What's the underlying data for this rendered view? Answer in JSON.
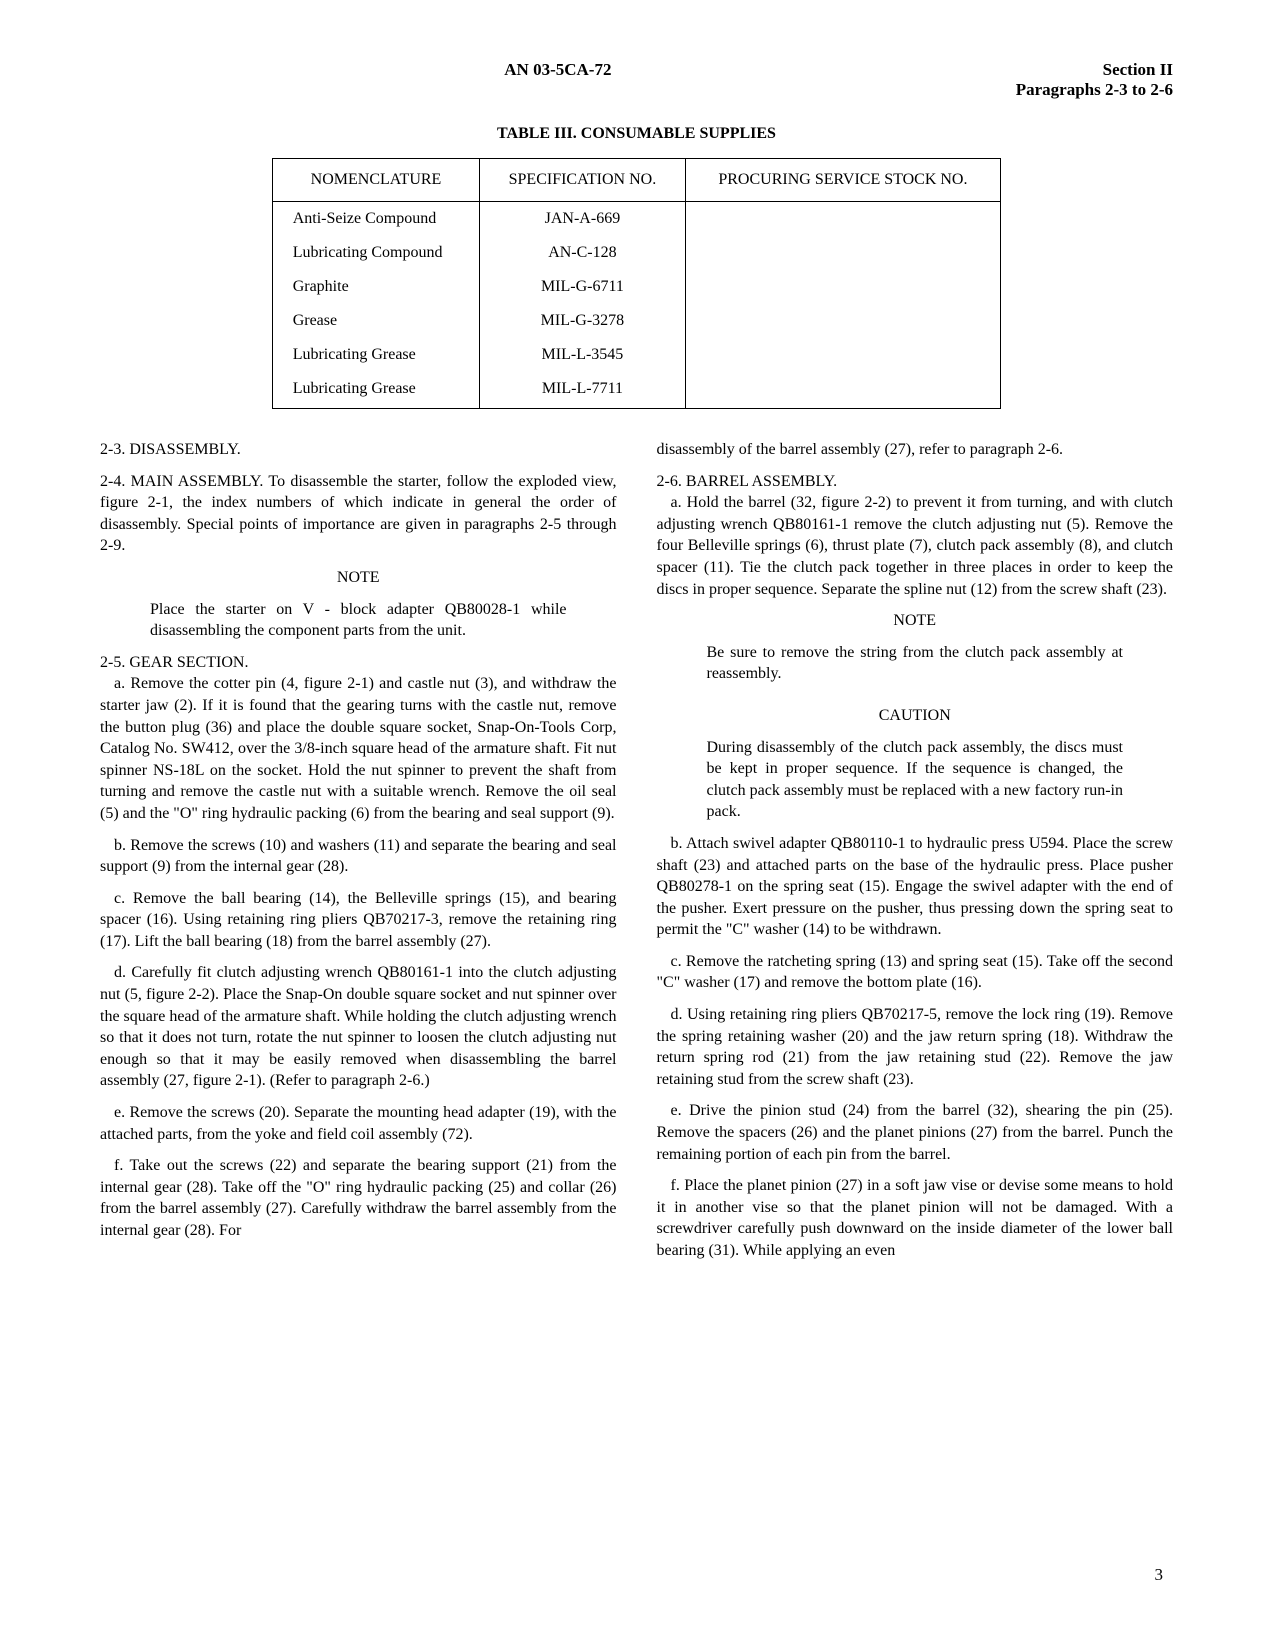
{
  "header": {
    "center": "AN 03-5CA-72",
    "right_line1": "Section II",
    "right_line2": "Paragraphs 2-3 to 2-6"
  },
  "table": {
    "title": "TABLE III.  CONSUMABLE SUPPLIES",
    "headers": [
      "NOMENCLATURE",
      "SPECIFICATION NO.",
      "PROCURING SERVICE STOCK NO."
    ],
    "rows": [
      [
        "Anti-Seize Compound",
        "JAN-A-669",
        ""
      ],
      [
        "Lubricating Compound",
        "AN-C-128",
        ""
      ],
      [
        "Graphite",
        "MIL-G-6711",
        ""
      ],
      [
        "Grease",
        "MIL-G-3278",
        ""
      ],
      [
        "Lubricating Grease",
        "MIL-L-3545",
        ""
      ],
      [
        "Lubricating Grease",
        "MIL-L-7711",
        ""
      ]
    ]
  },
  "left_col": {
    "p1": "2-3. DISASSEMBLY.",
    "p2": "2-4. MAIN ASSEMBLY. To disassemble the starter, follow the exploded view, figure 2-1, the index numbers of which indicate in general the order of disassembly. Special points of importance are given in paragraphs 2-5 through 2-9.",
    "note_title": "NOTE",
    "note": "Place the starter on V - block adapter QB80028-1 while disassembling the component parts from the unit.",
    "p3": "2-5. GEAR SECTION.",
    "p3a": "a. Remove the cotter pin (4, figure 2-1) and castle nut (3), and withdraw the starter jaw (2). If it is found that the gearing turns with the castle nut, remove the button plug (36) and place the double square socket, Snap-On-Tools Corp, Catalog No. SW412, over the 3/8-inch square head of the armature shaft. Fit nut spinner NS-18L on the socket. Hold the nut spinner to prevent the shaft from turning and remove the castle nut with a suitable wrench. Remove the oil seal (5) and the \"O\" ring hydraulic packing (6) from the bearing and seal support (9).",
    "p3b": "b. Remove the screws (10) and washers (11) and separate the bearing and seal support (9) from the internal gear (28).",
    "p3c": "c. Remove the ball bearing (14), the Belleville springs (15), and bearing spacer (16). Using retaining ring pliers QB70217-3, remove the retaining ring (17). Lift the ball bearing (18) from the barrel assembly (27).",
    "p3d": "d. Carefully fit clutch adjusting wrench QB80161-1 into the clutch adjusting nut (5, figure 2-2). Place the Snap-On double square socket and nut spinner over the square head of the armature shaft. While holding the clutch adjusting wrench so that it does not turn, rotate the nut spinner to loosen the clutch adjusting nut enough so that it may be easily removed when disassembling the barrel assembly (27, figure 2-1). (Refer to paragraph 2-6.)",
    "p3e": "e. Remove the screws (20). Separate the mounting head adapter (19), with the attached parts, from the yoke and field coil assembly (72).",
    "p3f": "f. Take out the screws (22) and separate the bearing support (21) from the internal gear (28). Take off the \"O\" ring hydraulic packing (25) and collar (26) from the barrel assembly (27). Carefully withdraw the barrel assembly from the internal gear (28). For"
  },
  "right_col": {
    "p1": "disassembly of the barrel assembly (27), refer to paragraph 2-6.",
    "p2": "2-6. BARREL ASSEMBLY.",
    "p2a": "a. Hold the barrel (32, figure 2-2) to prevent it from turning, and with clutch adjusting wrench QB80161-1 remove the clutch adjusting nut (5). Remove the four Belleville springs (6), thrust plate (7), clutch pack assembly (8), and clutch spacer (11). Tie the clutch pack together in three places in order to keep the discs in proper sequence. Separate the spline nut (12) from the screw shaft (23).",
    "note_title": "NOTE",
    "note": "Be sure to remove the string from the clutch pack assembly at reassembly.",
    "caution_title": "CAUTION",
    "caution": "During disassembly of the clutch pack assembly, the discs must be kept in proper sequence. If the sequence is changed, the clutch pack assembly must be replaced with a new factory run-in pack.",
    "p2b": "b. Attach swivel adapter QB80110-1 to hydraulic press U594. Place the screw shaft (23) and attached parts on the base of the hydraulic press. Place pusher QB80278-1 on the spring seat (15). Engage the swivel adapter with the end of the pusher. Exert pressure on the pusher, thus pressing down the spring seat to permit the \"C\" washer (14) to be withdrawn.",
    "p2c": "c. Remove the ratcheting spring (13) and spring seat (15). Take off the second \"C\" washer (17) and remove the bottom plate (16).",
    "p2d": "d. Using retaining ring pliers QB70217-5, remove the lock ring (19). Remove the spring retaining washer (20) and the jaw return spring (18). Withdraw the return spring rod (21) from the jaw retaining stud (22). Remove the jaw retaining stud from the screw shaft (23).",
    "p2e": "e. Drive the pinion stud (24) from the barrel (32), shearing the pin (25). Remove the spacers (26) and the planet pinions (27) from the barrel. Punch the remaining portion of each pin from the barrel.",
    "p2f": "f. Place the planet pinion (27) in a soft jaw vise or devise some means to hold it in another vise so that the planet pinion will not be damaged. With a screwdriver carefully push downward on the inside diameter of the lower ball bearing (31). While applying an even"
  },
  "page_number": "3"
}
